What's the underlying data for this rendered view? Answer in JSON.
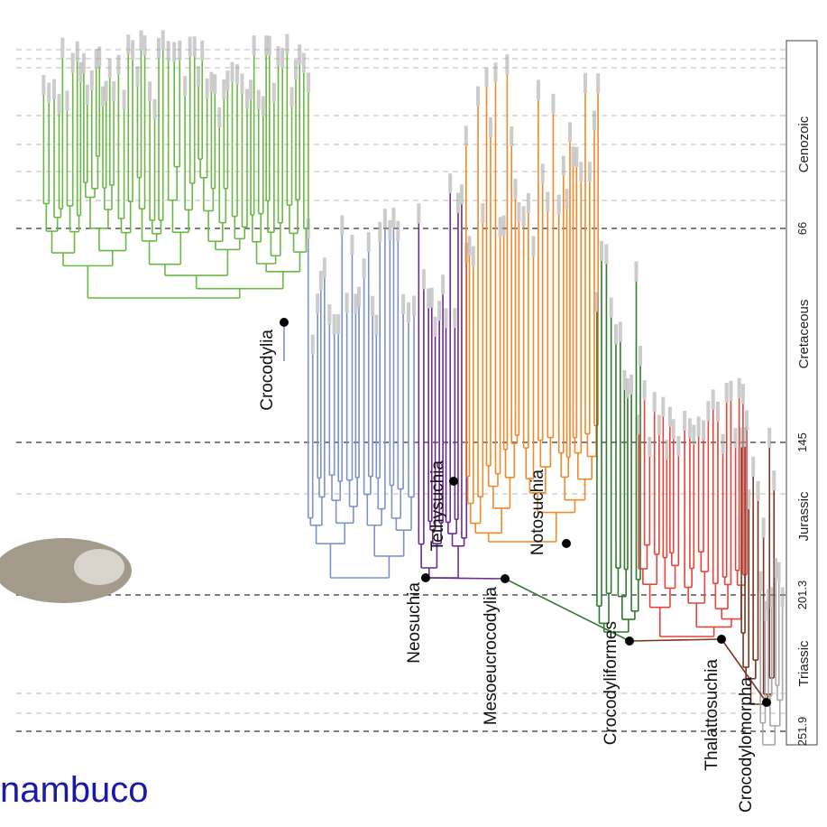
{
  "header": {
    "title": "nambuco"
  },
  "time_scale": {
    "eras": [
      "Cenozoic",
      "Cretaceous",
      "Jurassic",
      "Triassic"
    ],
    "boundaries": [
      66,
      145,
      201.3,
      251.9
    ]
  },
  "clades": [
    "Crocodylia",
    "Tethysuchia",
    "Neosuchia",
    "Mesoeucrocodylia",
    "Notosuchia",
    "Crocodyliformes",
    "Thalattosuchia",
    "Crocodylomorpha"
  ]
}
